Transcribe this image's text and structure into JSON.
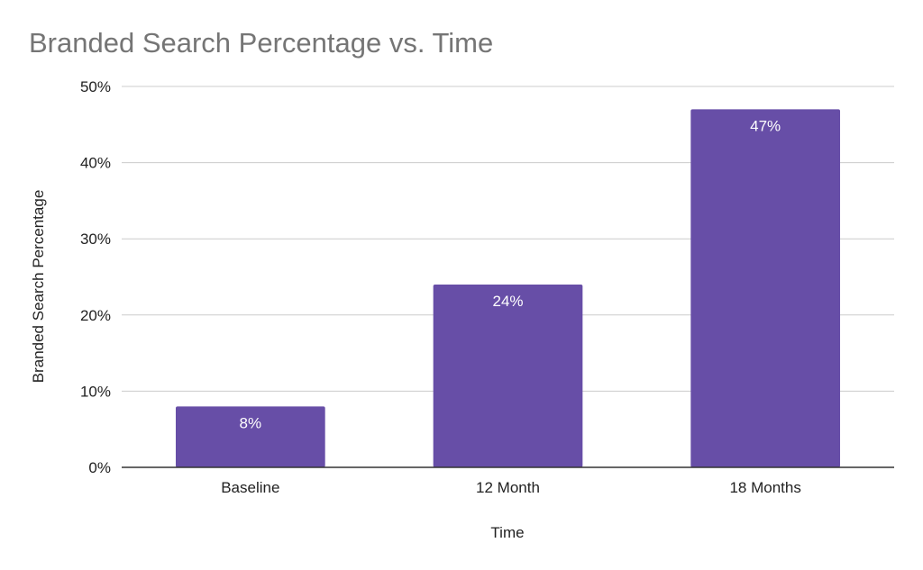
{
  "chart_data": {
    "type": "bar",
    "title": "Branded Search Percentage vs. Time",
    "xlabel": "Time",
    "ylabel": "Branded Search Percentage",
    "categories": [
      "Baseline",
      "12 Month",
      "18 Months"
    ],
    "values": [
      8,
      24,
      47
    ],
    "data_labels": [
      "8%",
      "24%",
      "47%"
    ],
    "ylim": [
      0,
      50
    ],
    "yticks": [
      0,
      10,
      20,
      30,
      40,
      50
    ],
    "ytick_labels": [
      "0%",
      "10%",
      "20%",
      "30%",
      "40%",
      "50%"
    ],
    "grid": true,
    "legend": "none",
    "bar_color": "#674ea7"
  }
}
